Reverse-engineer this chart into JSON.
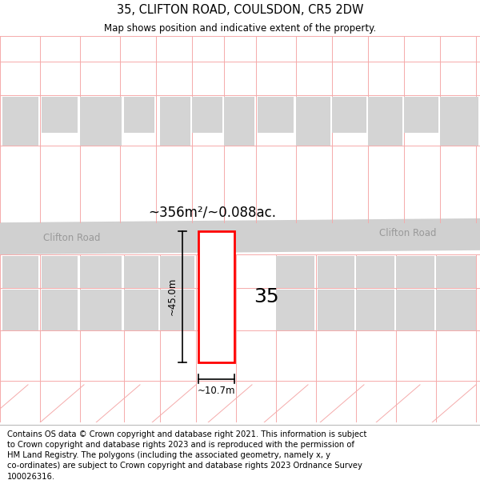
{
  "title": "35, CLIFTON ROAD, COULSDON, CR5 2DW",
  "subtitle": "Map shows position and indicative extent of the property.",
  "area_label": "~356m²/~0.088ac.",
  "dim_height": "~45.0m",
  "dim_width": "~10.7m",
  "property_number": "35",
  "road_label": "Clifton Road",
  "copyright_text": "Contains OS data © Crown copyright and database right 2021. This information is subject to Crown copyright and database rights 2023 and is reproduced with the permission of HM Land Registry. The polygons (including the associated geometry, namely x, y co-ordinates) are subject to Crown copyright and database rights 2023 Ordnance Survey 100026316.",
  "bg_color": "#ffffff",
  "road_color": "#d0d0d0",
  "plot_edge_color": "#ff0000",
  "grid_line_color": "#f5aaaa",
  "building_color": "#d4d4d4",
  "title_fontsize": 10.5,
  "subtitle_fontsize": 8.5,
  "copyright_fontsize": 7.2,
  "road_label_color": "#999999",
  "area_label_fontsize": 12,
  "dim_fontsize": 8.5,
  "prop_number_fontsize": 18
}
